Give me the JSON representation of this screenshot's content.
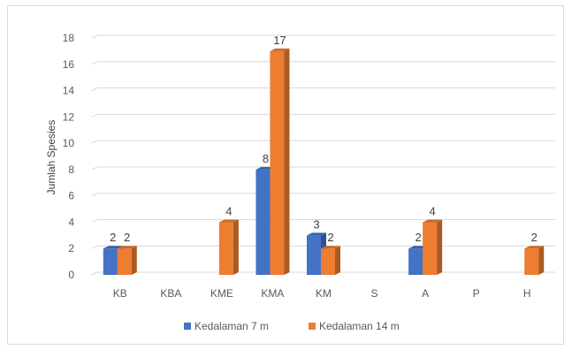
{
  "chart_data": {
    "type": "bar",
    "title": "",
    "xlabel": "",
    "ylabel": "Jumlah Spesies",
    "ylim": [
      0,
      18
    ],
    "yticks": [
      0,
      2,
      4,
      6,
      8,
      10,
      12,
      14,
      16,
      18
    ],
    "grid": true,
    "legend_position": "bottom",
    "categories": [
      "KB",
      "KBA",
      "KME",
      "KMA",
      "KM",
      "S",
      "A",
      "P",
      "H"
    ],
    "series": [
      {
        "name": "Kedalaman 7 m",
        "color": "#4472c4",
        "values": [
          2,
          null,
          null,
          8,
          3,
          null,
          2,
          null,
          null
        ]
      },
      {
        "name": "Kedalaman 14 m",
        "color": "#ed7d31",
        "values": [
          2,
          null,
          4,
          17,
          2,
          null,
          4,
          null,
          2
        ]
      }
    ]
  }
}
